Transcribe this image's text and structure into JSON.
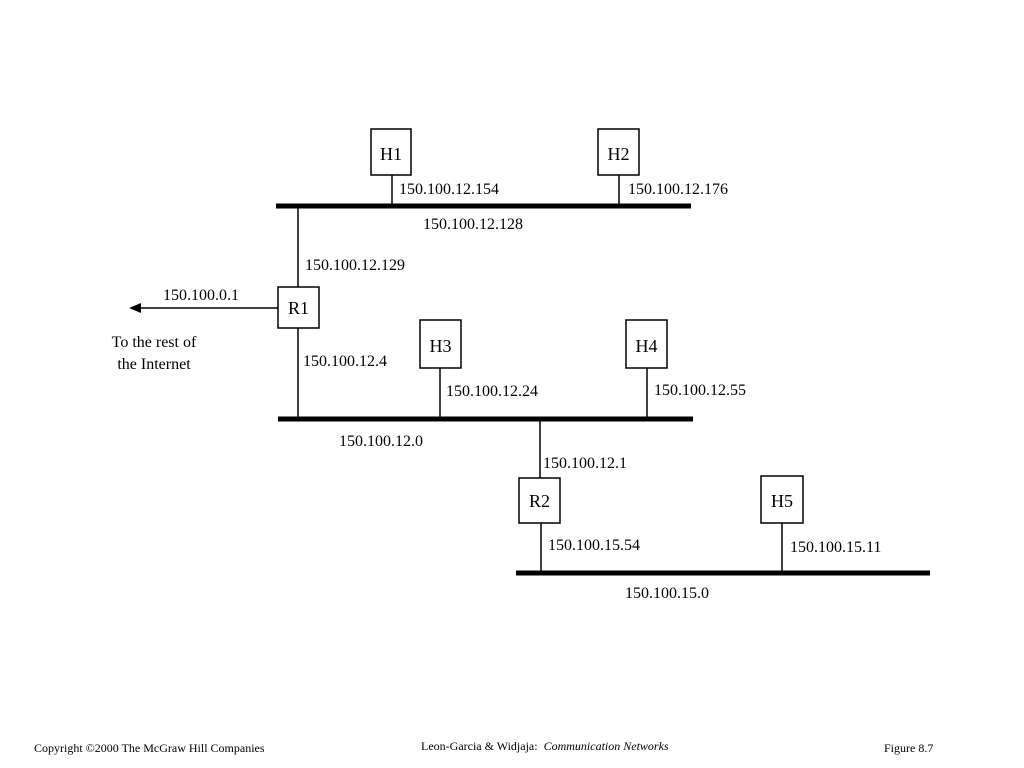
{
  "nodes": {
    "h1": "H1",
    "h2": "H2",
    "h3": "H3",
    "h4": "H4",
    "h5": "H5",
    "r1": "R1",
    "r2": "R2"
  },
  "addresses": {
    "h1": "150.100.12.154",
    "h2": "150.100.12.176",
    "h3": "150.100.12.24",
    "h4": "150.100.12.55",
    "h5": "150.100.15.11",
    "r1_top": "150.100.12.129",
    "r1_bottom": "150.100.12.4",
    "r1_internet": "150.100.0.1",
    "r2_top": "150.100.12.1",
    "r2_bottom": "150.100.15.54"
  },
  "networks": {
    "top": "150.100.12.128",
    "middle": "150.100.12.0",
    "bottom": "150.100.15.0"
  },
  "internet": {
    "line1": "To the rest of",
    "line2": "the Internet"
  },
  "footer": {
    "copyright": "Copyright ©2000 The McGraw Hill Companies",
    "authors": "Leon-Garcia & Widjaja:",
    "book_title": "Communication Networks",
    "figure": "Figure 8.7"
  }
}
